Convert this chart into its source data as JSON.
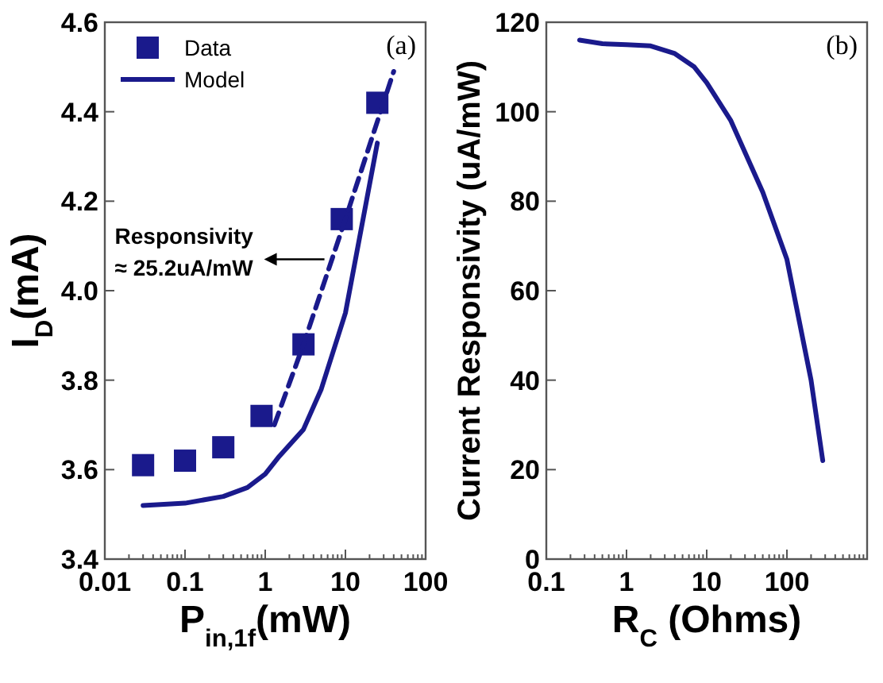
{
  "chart_data": [
    {
      "type": "scatter",
      "xlabel": "P$_{in,1f}$(mW)",
      "ylabel": "I$_{D}$(mA)",
      "log": "x",
      "xlim": [
        0.01,
        100
      ],
      "xticks": [
        0.01,
        0.1,
        1,
        10,
        100
      ],
      "ylim": [
        3.4,
        4.6
      ],
      "yticks": [
        3.4,
        3.6,
        3.8,
        {
          "value": 4,
          "label": "4.0"
        },
        4.2,
        4.4,
        4.6
      ],
      "legend": "top left",
      "series": [
        {
          "name": "Data",
          "marker": "square",
          "color": "#1a1a8c",
          "x": [
            0.03,
            0.1,
            0.3,
            0.9,
            3,
            9,
            25
          ],
          "values": [
            3.61,
            3.62,
            3.65,
            3.72,
            3.88,
            4.16,
            4.42
          ]
        },
        {
          "name": "Model",
          "type": "line",
          "marker": "none",
          "line_style": "solid",
          "color": "#1a1a8c",
          "x": [
            0.03,
            0.1,
            0.3,
            0.6,
            1,
            1.5,
            3,
            5,
            10,
            25
          ],
          "values": [
            3.52,
            3.525,
            3.54,
            3.56,
            3.59,
            3.63,
            3.69,
            3.78,
            3.95,
            4.33
          ]
        },
        {
          "type": "line",
          "marker": "none",
          "line_style": "dashed",
          "color": "#1a1a8c",
          "x": [
            1.3,
            3,
            10,
            40
          ],
          "values": [
            3.7,
            3.88,
            4.16,
            4.49
          ]
        }
      ],
      "annotations": [
        "(a)",
        {
          "text": "Responsivity\n≈ 25.2uA/mW",
          "x": 6,
          "y": 4.07
        }
      ]
    },
    {
      "type": "line",
      "xlabel": "R$_{C}$ (Ohms)",
      "ylabel": "Current Responsivity (uA/mW)",
      "log": "x",
      "xlim": [
        0.1,
        1000
      ],
      "xticks": [
        0.1,
        1,
        10,
        100,
        {
          "value": 1000,
          "label": null
        }
      ],
      "ylim": [
        0,
        120
      ],
      "yticks": [
        0,
        20,
        40,
        60,
        80,
        100,
        120
      ],
      "series": [
        {
          "marker": "none",
          "line_style": "solid",
          "color": "#1a1a8c",
          "x": [
            0.26,
            0.5,
            1,
            2,
            4,
            7,
            10,
            20,
            50,
            100,
            200,
            280
          ],
          "values": [
            116,
            115.2,
            115,
            114.7,
            113,
            110,
            106.5,
            98,
            82,
            67,
            40,
            22
          ]
        }
      ],
      "annotations": [
        "(b)"
      ]
    }
  ]
}
